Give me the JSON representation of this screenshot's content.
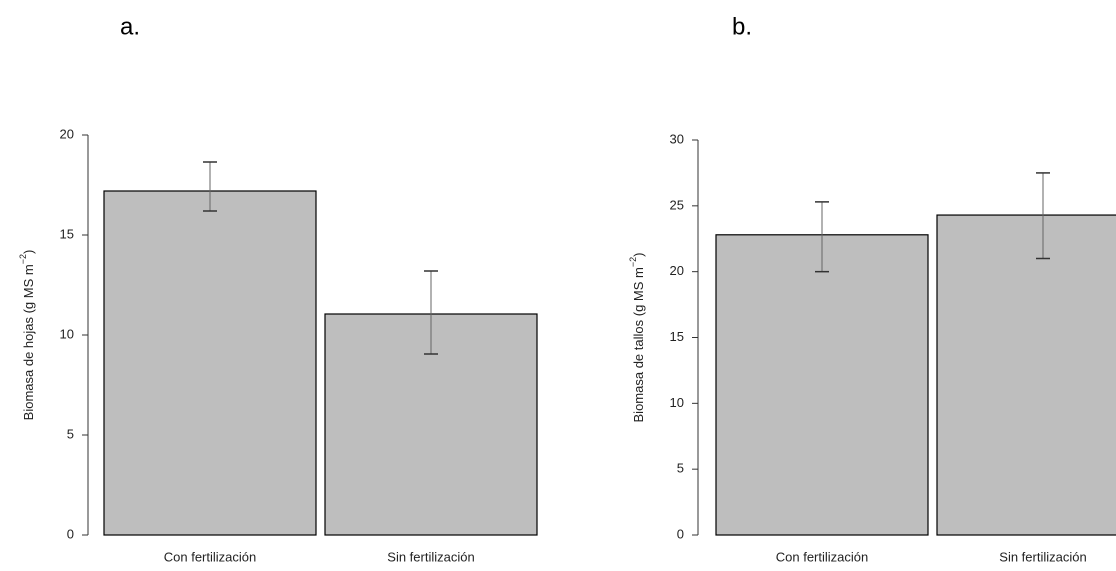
{
  "chart_data": [
    {
      "type": "bar",
      "panel": "a.",
      "ylabel": "Biomasa de hojas (g MS m",
      "ylabel_sup": "−2",
      "ylabel_end": ")",
      "categories": [
        "Con fertilización",
        "Sin fertilización"
      ],
      "values": [
        17.2,
        11.05
      ],
      "lower": [
        16.2,
        9.05
      ],
      "upper": [
        18.65,
        13.2
      ],
      "color": "#bebebe",
      "ylim": [
        0,
        20
      ],
      "yticks": [
        0,
        5,
        10,
        15,
        20
      ]
    },
    {
      "type": "bar",
      "panel": "b.",
      "ylabel": "Biomasa de tallos (g MS m",
      "ylabel_sup": "−2",
      "ylabel_end": ")",
      "categories": [
        "Con fertilización",
        "Sin fertilización"
      ],
      "values": [
        22.8,
        24.3
      ],
      "lower": [
        20.0,
        21.0
      ],
      "upper": [
        25.3,
        27.5
      ],
      "color": "#bebebe",
      "ylim": [
        0,
        30
      ],
      "yticks": [
        0,
        5,
        10,
        15,
        20,
        25,
        30
      ]
    }
  ]
}
